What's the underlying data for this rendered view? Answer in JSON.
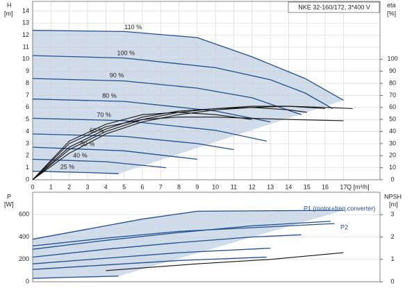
{
  "chart_data": [
    {
      "type": "line",
      "title": "NKE 32-160/172, 3*400 V",
      "y_label": "H",
      "y_unit": "[m]",
      "y2_label": "eta",
      "y2_unit": "[%]",
      "x_label": "Q [m³/h]",
      "xlim": [
        0,
        19
      ],
      "xticks": [
        0,
        1,
        2,
        3,
        4,
        5,
        6,
        7,
        8,
        9,
        10,
        11,
        12,
        13,
        14,
        15,
        16,
        17
      ],
      "ylim": [
        0,
        14.8
      ],
      "yticks": [
        0,
        1,
        2,
        3,
        4,
        5,
        6,
        7,
        8,
        9,
        10,
        11,
        12,
        13,
        14
      ],
      "y2lim": [
        0,
        148
      ],
      "y2ticks": [
        0,
        10,
        20,
        30,
        40,
        50,
        60,
        70,
        80,
        90,
        100
      ],
      "grid": true,
      "area_color": "#c9d6e6",
      "series": [
        {
          "name": "110 %",
          "color": "#1f4e8c",
          "x": [
            0,
            5,
            9,
            12,
            14.9,
            17
          ],
          "values": [
            12.4,
            12.3,
            11.8,
            10.2,
            8.4,
            6.6
          ]
        },
        {
          "name": "100 %",
          "color": "#1f4e8c",
          "x": [
            0,
            5,
            10,
            13,
            14.9,
            16.4
          ],
          "values": [
            10.3,
            10.1,
            9.3,
            8.3,
            7.2,
            5.9
          ]
        },
        {
          "name": "90 %",
          "color": "#1f4e8c",
          "x": [
            0,
            5,
            9,
            12,
            14.7
          ],
          "values": [
            8.4,
            8.2,
            7.6,
            6.8,
            5.4
          ]
        },
        {
          "name": "80 %",
          "color": "#1f4e8c",
          "x": [
            0,
            5,
            10,
            13
          ],
          "values": [
            6.7,
            6.5,
            5.7,
            4.8
          ]
        },
        {
          "name": "70 %",
          "color": "#1f4e8c",
          "x": [
            0,
            5,
            10,
            12.8
          ],
          "values": [
            5.1,
            4.9,
            4.1,
            3.2
          ]
        },
        {
          "name": "60 %",
          "color": "#1f4e8c",
          "x": [
            0,
            5,
            9,
            11
          ],
          "values": [
            3.8,
            3.6,
            3.0,
            2.5
          ]
        },
        {
          "name": "50 %",
          "color": "#1f4e8c",
          "x": [
            0,
            5,
            9
          ],
          "values": [
            2.7,
            2.4,
            1.7
          ]
        },
        {
          "name": "40 %",
          "color": "#1f4e8c",
          "x": [
            0,
            4,
            7.3
          ],
          "values": [
            1.7,
            1.5,
            1.0
          ]
        },
        {
          "name": "25 %",
          "color": "#1f4e8c",
          "x": [
            0,
            3,
            4.7
          ],
          "values": [
            0.7,
            0.6,
            0.5
          ]
        },
        {
          "color": "#111111",
          "axis": "y2",
          "x": [
            0,
            2,
            4,
            6,
            8,
            10,
            12,
            14,
            16,
            17.5
          ],
          "values": [
            0,
            22,
            38,
            48,
            54,
            58,
            60,
            61,
            60,
            59
          ]
        },
        {
          "color": "#111111",
          "axis": "y2",
          "x": [
            0,
            2,
            4,
            6,
            8,
            10,
            12,
            14,
            16
          ],
          "values": [
            0,
            25,
            40,
            50,
            56,
            59,
            61,
            61,
            59
          ]
        },
        {
          "color": "#111111",
          "axis": "y2",
          "x": [
            0,
            2,
            4,
            6,
            8,
            10,
            12,
            14,
            15
          ],
          "values": [
            0,
            27,
            42,
            52,
            57,
            59,
            60,
            58,
            56
          ]
        },
        {
          "color": "#111111",
          "axis": "y2",
          "x": [
            0,
            2,
            4,
            6,
            8,
            10,
            12,
            14,
            17
          ],
          "values": [
            0,
            30,
            44,
            50,
            52,
            52,
            51,
            50,
            49
          ]
        },
        {
          "color": "#111111",
          "axis": "y2",
          "x": [
            0,
            2,
            4,
            6,
            8,
            10,
            12
          ],
          "values": [
            0,
            32,
            46,
            54,
            56,
            54,
            50
          ]
        }
      ]
    },
    {
      "type": "line",
      "y_label": "P",
      "y_unit": "[W]",
      "y2_label": "NPSH",
      "y2_unit": "[m]",
      "xlim": [
        0,
        19
      ],
      "ylim": [
        0,
        800
      ],
      "yticks": [
        0,
        200,
        400,
        600
      ],
      "y2lim": [
        0,
        4
      ],
      "y2ticks": [
        0,
        1,
        2,
        3
      ],
      "grid": true,
      "area_color": "#c9d6e6",
      "annotations": [
        "P1 (motor+freq.converter)",
        "P2"
      ],
      "series": [
        {
          "color": "#1f4e8c",
          "x": [
            0,
            3,
            6,
            9,
            12,
            15,
            17
          ],
          "values": [
            380,
            470,
            560,
            630,
            633,
            636,
            638
          ]
        },
        {
          "color": "#1f4e8c",
          "x": [
            0,
            4,
            8,
            12,
            16.3
          ],
          "values": [
            290,
            370,
            440,
            500,
            540
          ]
        },
        {
          "color": "#1f4e8c",
          "x": [
            0,
            4,
            8,
            12,
            14.7
          ],
          "values": [
            220,
            290,
            350,
            400,
            420
          ]
        },
        {
          "color": "#1f4e8c",
          "x": [
            0,
            4,
            8,
            13
          ],
          "values": [
            160,
            210,
            260,
            300
          ]
        },
        {
          "color": "#1f4e8c",
          "x": [
            0,
            4,
            8,
            12.8
          ],
          "values": [
            110,
            150,
            190,
            220
          ]
        },
        {
          "color": "#1f4e8c",
          "x": [
            0,
            4,
            8,
            16.5
          ],
          "values": [
            320,
            390,
            450,
            520
          ]
        },
        {
          "color": "#1f4e8c",
          "x": [
            0,
            2,
            4.7
          ],
          "values": [
            30,
            40,
            50
          ]
        },
        {
          "color": "#111111",
          "axis": "y2",
          "x": [
            4,
            9,
            13,
            17
          ],
          "values": [
            0.5,
            0.8,
            1.0,
            1.3
          ]
        }
      ]
    }
  ]
}
